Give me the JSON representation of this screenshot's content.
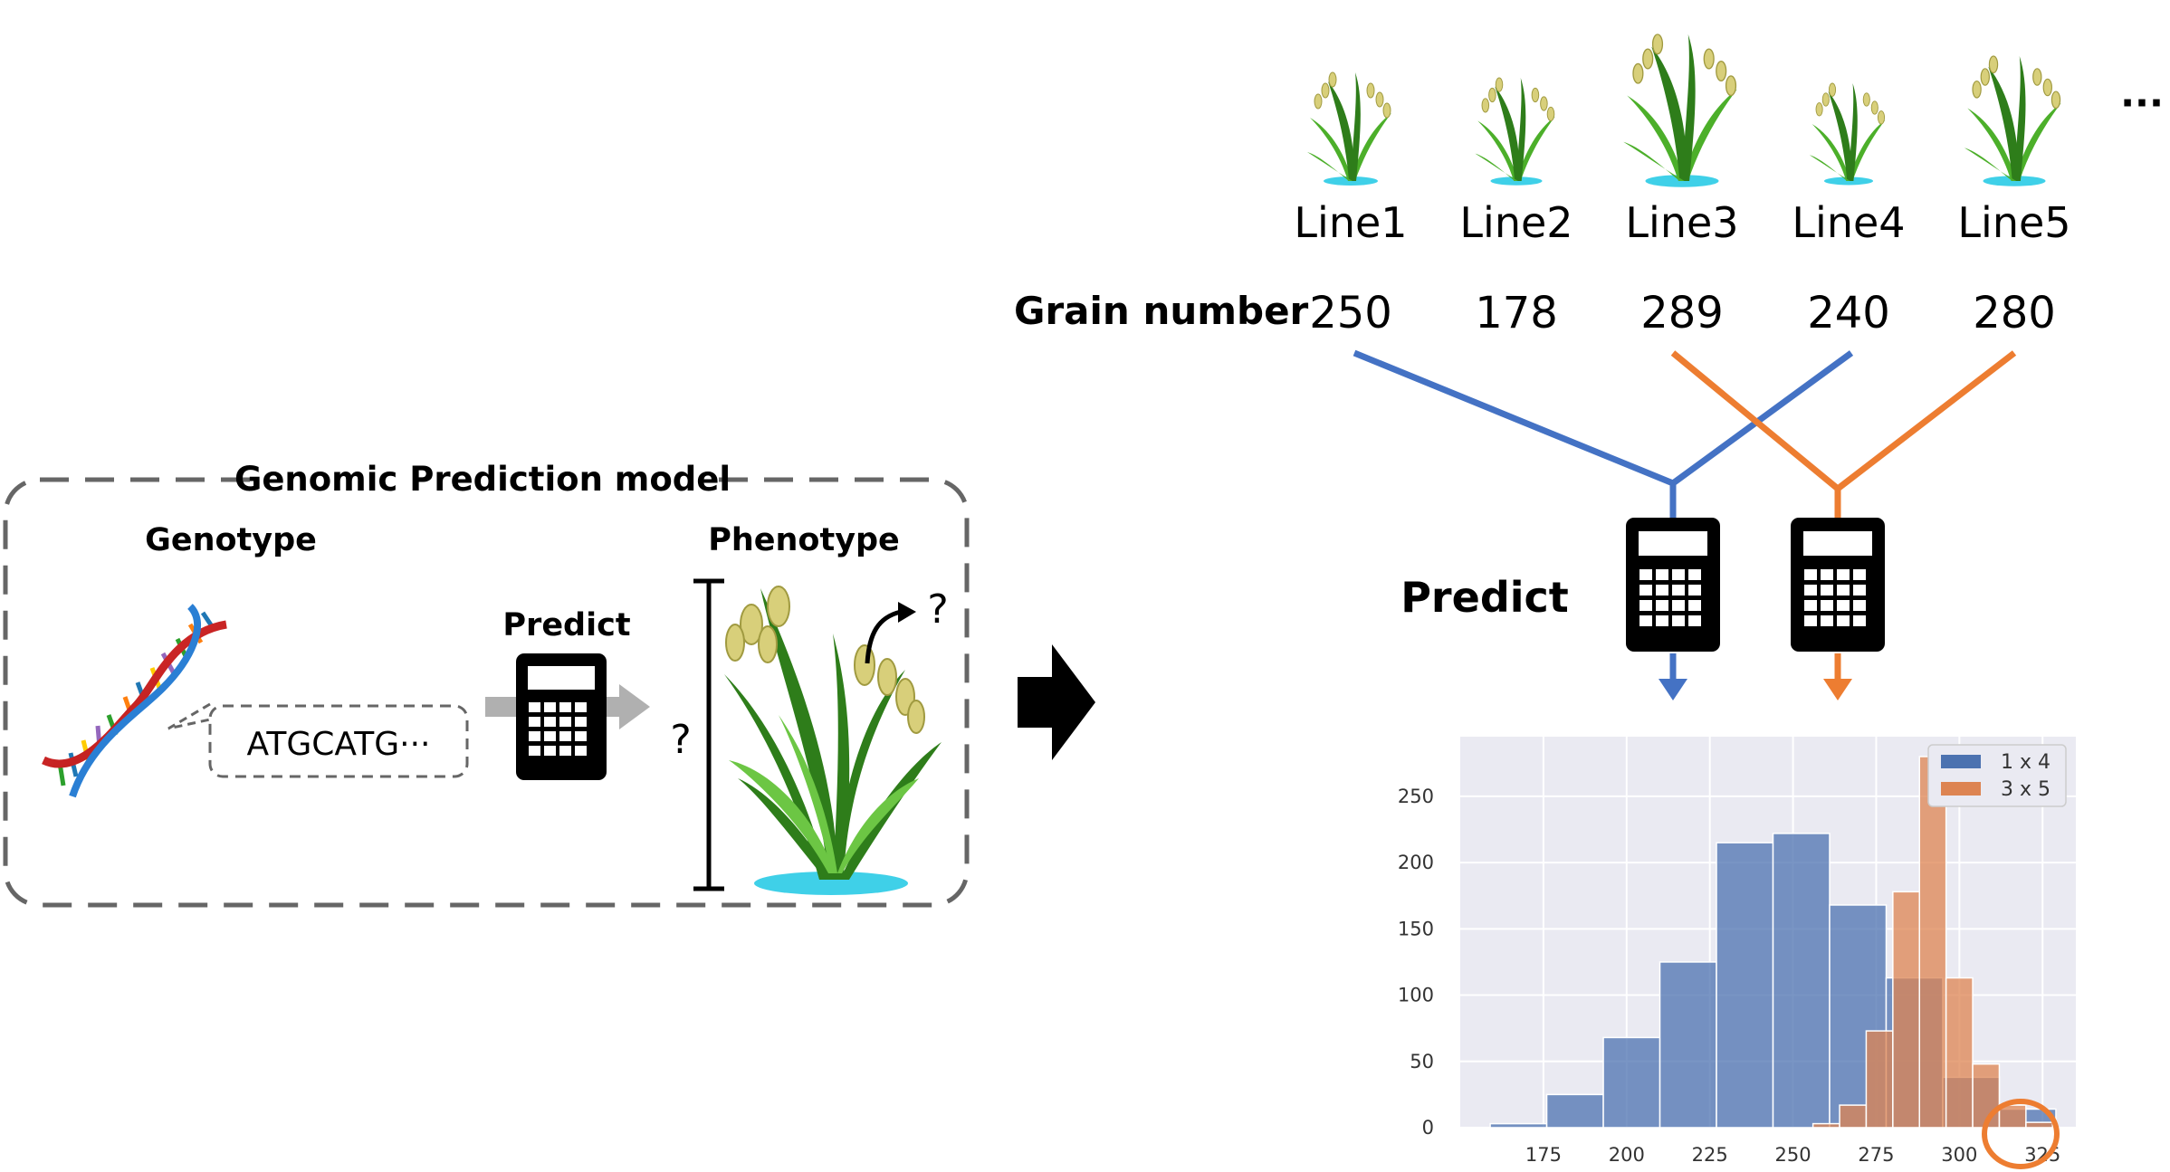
{
  "model_box": {
    "title": "Genomic Prediction model",
    "genotype_label": "Genotype",
    "sequence_text": "ATGCATG···",
    "predict_label": "Predict",
    "phenotype_label": "Phenotype",
    "unknown_mark_1": "?",
    "unknown_mark_2": "?"
  },
  "lines": {
    "row_label": "Grain number",
    "items": [
      {
        "name": "Line1",
        "grain_number": "250"
      },
      {
        "name": "Line2",
        "grain_number": "178"
      },
      {
        "name": "Line3",
        "grain_number": "289"
      },
      {
        "name": "Line4",
        "grain_number": "240"
      },
      {
        "name": "Line5",
        "grain_number": "280"
      }
    ],
    "ellipsis": "···"
  },
  "predict_label": "Predict",
  "colors": {
    "cross_1x4": "#4472c4",
    "cross_3x5": "#ed7d31",
    "hist_blue": "#4c72b0",
    "hist_orange": "#dd8452",
    "plot_bg": "#eaeaf2",
    "dashed_border": "#666666"
  },
  "icons": [
    "dna-icon",
    "calculator-icon",
    "rice-plant-icon",
    "arrow-right-icon",
    "curved-arrow-icon"
  ],
  "chart_data": {
    "type": "histogram",
    "title": "",
    "xlabel": "",
    "ylabel": "",
    "xlim": [
      150,
      335
    ],
    "ylim": [
      0,
      295
    ],
    "xticks": [
      "175",
      "200",
      "225",
      "250",
      "275",
      "300",
      "325"
    ],
    "yticks": [
      "0",
      "50",
      "100",
      "150",
      "200",
      "250"
    ],
    "grid": true,
    "legend_position": "top-right",
    "highlight_tick": "325",
    "series": [
      {
        "name": "1 x 4",
        "bins": [
          {
            "x0": 159,
            "x1": 176,
            "count": 3
          },
          {
            "x0": 176,
            "x1": 193,
            "count": 25
          },
          {
            "x0": 193,
            "x1": 210,
            "count": 68
          },
          {
            "x0": 210,
            "x1": 227,
            "count": 125
          },
          {
            "x0": 227,
            "x1": 244,
            "count": 215
          },
          {
            "x0": 244,
            "x1": 261,
            "count": 222
          },
          {
            "x0": 261,
            "x1": 278,
            "count": 168
          },
          {
            "x0": 278,
            "x1": 295,
            "count": 113
          },
          {
            "x0": 295,
            "x1": 312,
            "count": 38
          },
          {
            "x0": 312,
            "x1": 329,
            "count": 14
          }
        ]
      },
      {
        "name": "3 x 5",
        "bins": [
          {
            "x0": 256,
            "x1": 264,
            "count": 3
          },
          {
            "x0": 264,
            "x1": 272,
            "count": 17
          },
          {
            "x0": 272,
            "x1": 280,
            "count": 73
          },
          {
            "x0": 280,
            "x1": 288,
            "count": 178
          },
          {
            "x0": 288,
            "x1": 296,
            "count": 280
          },
          {
            "x0": 296,
            "x1": 304,
            "count": 113
          },
          {
            "x0": 304,
            "x1": 312,
            "count": 48
          },
          {
            "x0": 312,
            "x1": 320,
            "count": 17
          },
          {
            "x0": 320,
            "x1": 328,
            "count": 4
          }
        ]
      }
    ]
  }
}
